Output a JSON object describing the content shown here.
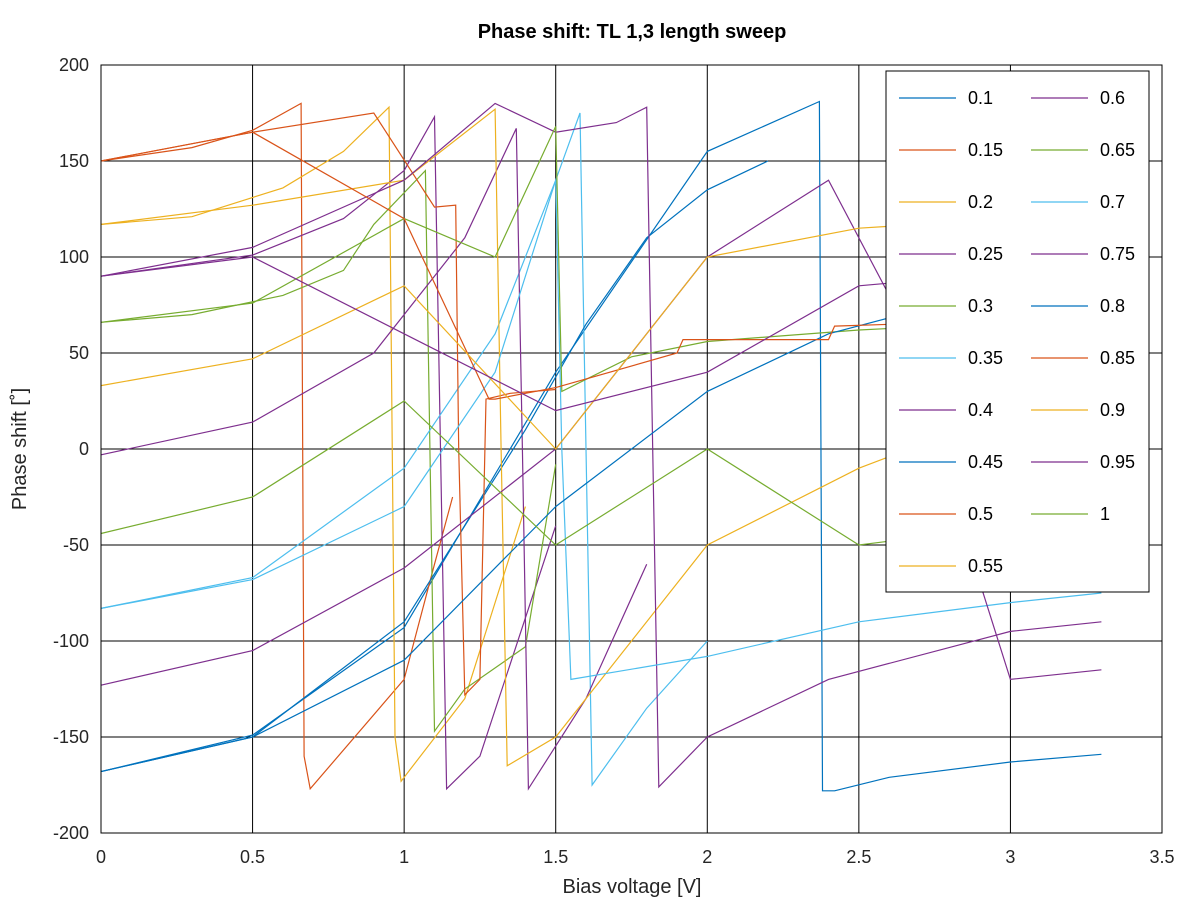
{
  "chart_data": {
    "type": "line",
    "title": "Phase shift: TL 1,3 length sweep",
    "xlabel": "Bias voltage [V]",
    "ylabel": "Phase shift [˚]",
    "xlim": [
      0,
      3.5
    ],
    "ylim": [
      -200,
      200
    ],
    "x_ticks": [
      "0",
      "0.5",
      "1",
      "1.5",
      "2",
      "2.5",
      "3",
      "3.5"
    ],
    "y_ticks": [
      "200",
      "150",
      "100",
      "50",
      "0",
      "-50",
      "-100",
      "-150",
      "-200"
    ],
    "grid": true,
    "legend_position": "top-right",
    "legend_columns": 2,
    "series": [
      {
        "name": "0.1",
        "color": "#0072bd",
        "x": [
          0,
          0.5,
          1,
          1.5,
          2,
          2.37,
          2.38,
          2.42,
          2.6,
          3,
          3.3
        ],
        "y": [
          -168,
          -149,
          -93,
          40,
          155,
          181,
          -178,
          -178,
          -171,
          -163,
          -159
        ]
      },
      {
        "name": "0.15",
        "color": "#d95319",
        "x": [
          0,
          0.3,
          0.5,
          0.66,
          0.67,
          0.69,
          1,
          1.1,
          1.16
        ],
        "y": [
          150,
          157,
          166,
          180,
          -160,
          -177,
          -120,
          -60,
          -25
        ]
      },
      {
        "name": "0.2",
        "color": "#edb120",
        "x": [
          0,
          0.3,
          0.6,
          0.8,
          0.95,
          0.97,
          0.99,
          1.2,
          1.4
        ],
        "y": [
          117,
          121,
          136,
          155,
          178,
          -150,
          -173,
          -130,
          -30
        ]
      },
      {
        "name": "0.25",
        "color": "#7e2f8e",
        "x": [
          0,
          0.5,
          0.8,
          1.0,
          1.1,
          1.12,
          1.14,
          1.25,
          1.5
        ],
        "y": [
          90,
          101,
          120,
          145,
          173,
          0,
          -177,
          -160,
          -40
        ]
      },
      {
        "name": "0.3",
        "color": "#77ac30",
        "x": [
          0,
          0.3,
          0.6,
          0.8,
          0.9,
          1.07,
          1.1,
          1.2,
          1.4,
          1.5
        ],
        "y": [
          66,
          70,
          80,
          93,
          117,
          145,
          -147,
          -125,
          -103,
          -8
        ]
      },
      {
        "name": "0.35",
        "color": "#4dbeee",
        "x": [
          0,
          0.5,
          1.0,
          1.3,
          1.5,
          1.58,
          1.6,
          1.62,
          1.8,
          2.0
        ],
        "y": [
          -83,
          -67,
          -10,
          60,
          140,
          175,
          0,
          -175,
          -135,
          -100
        ]
      },
      {
        "name": "0.4",
        "color": "#7e2f8e",
        "x": [
          0,
          0.5,
          0.9,
          1.2,
          1.37,
          1.39,
          1.41,
          1.6,
          1.8
        ],
        "y": [
          -3,
          14,
          50,
          110,
          167,
          0,
          -177,
          -130,
          -60
        ]
      },
      {
        "name": "0.45",
        "color": "#0072bd",
        "x": [
          0,
          0.5,
          1.0,
          1.4,
          1.6,
          1.8,
          2.0,
          2.2
        ],
        "y": [
          -168,
          -150,
          -90,
          10,
          65,
          110,
          135,
          150
        ]
      },
      {
        "name": "0.5",
        "color": "#d95319",
        "x": [
          0,
          0.5,
          0.9,
          1.1,
          1.17,
          1.18,
          1.2,
          1.25,
          1.27,
          1.35,
          1.5
        ],
        "y": [
          150,
          165,
          175,
          126,
          127,
          0,
          -128,
          -120,
          26,
          29,
          31
        ]
      },
      {
        "name": "0.55",
        "color": "#edb120",
        "x": [
          0,
          0.5,
          1.0,
          1.3,
          1.32,
          1.34,
          1.5,
          2.0,
          2.5,
          3.0,
          3.3
        ],
        "y": [
          117,
          127,
          140,
          177,
          0,
          -165,
          -150,
          -50,
          -10,
          20,
          40
        ]
      },
      {
        "name": "0.6",
        "color": "#7e2f8e",
        "x": [
          0,
          0.5,
          1.0,
          1.3,
          1.5,
          1.7,
          1.8,
          1.82,
          1.84,
          2.0,
          2.4,
          3.0,
          3.3
        ],
        "y": [
          90,
          105,
          140,
          180,
          165,
          170,
          178,
          0,
          -176,
          -150,
          -120,
          -95,
          -90
        ]
      },
      {
        "name": "0.65",
        "color": "#77ac30",
        "x": [
          0,
          0.5,
          1.0,
          1.3,
          1.5,
          1.52,
          1.75,
          2.0,
          2.5,
          3.0,
          3.3
        ],
        "y": [
          66,
          76,
          120,
          100,
          168,
          30,
          48,
          56,
          62,
          66,
          69
        ]
      },
      {
        "name": "0.7",
        "color": "#4dbeee",
        "x": [
          0,
          0.5,
          1.0,
          1.3,
          1.5,
          1.52,
          1.55,
          2.0,
          2.5,
          3.0,
          3.3
        ],
        "y": [
          -83,
          -68,
          -30,
          40,
          140,
          0,
          -120,
          -108,
          -90,
          -80,
          -75
        ]
      },
      {
        "name": "0.75",
        "color": "#7e2f8e",
        "x": [
          0,
          0.5,
          1.0,
          1.5,
          1.8,
          2.0,
          2.4,
          2.6,
          3.0,
          3.3
        ],
        "y": [
          -123,
          -105,
          -62,
          0,
          60,
          100,
          140,
          80,
          -120,
          -115
        ]
      },
      {
        "name": "0.8",
        "color": "#0072bd",
        "x": [
          0,
          0.5,
          1.0,
          1.5,
          2.0,
          2.4,
          3.0,
          3.3
        ],
        "y": [
          -168,
          -150,
          -110,
          -30,
          30,
          60,
          85,
          95
        ]
      },
      {
        "name": "0.85",
        "color": "#d95319",
        "x": [
          0,
          0.5,
          1.0,
          1.28,
          1.3,
          1.5,
          1.9,
          1.92,
          2.4,
          2.42,
          3.0,
          3.3
        ],
        "y": [
          150,
          165,
          120,
          26,
          26,
          32,
          50,
          57,
          57,
          64,
          67,
          70
        ]
      },
      {
        "name": "0.9",
        "color": "#edb120",
        "x": [
          0,
          0.5,
          1.0,
          1.5,
          2.0,
          2.5,
          3.0,
          3.3
        ],
        "y": [
          33,
          47,
          85,
          0,
          100,
          115,
          120,
          123
        ]
      },
      {
        "name": "0.95",
        "color": "#7e2f8e",
        "x": [
          0,
          0.5,
          1.0,
          1.5,
          2.0,
          2.5,
          3.0,
          3.3
        ],
        "y": [
          90,
          100,
          60,
          20,
          40,
          85,
          92,
          95
        ]
      },
      {
        "name": "1",
        "color": "#77ac30",
        "x": [
          0,
          0.5,
          1.0,
          1.5,
          2.0,
          2.5,
          3.0,
          3.3
        ],
        "y": [
          -44,
          -25,
          25,
          -50,
          0,
          -50,
          -40,
          -36
        ]
      }
    ]
  }
}
